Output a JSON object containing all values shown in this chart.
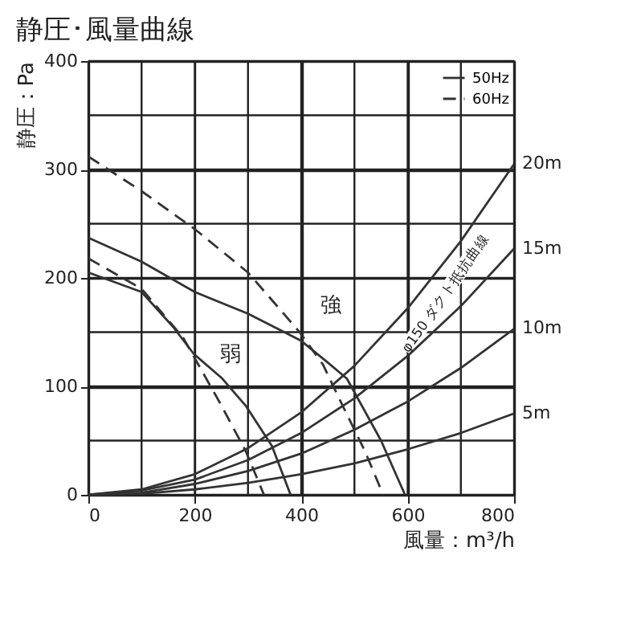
{
  "chart_data": {
    "type": "line",
    "title": "静圧･風量曲線",
    "xlabel": "風量：m³/h",
    "ylabel": "静圧：Pa",
    "xlim": [
      0,
      800
    ],
    "ylim": [
      0,
      400
    ],
    "xticks": [
      0,
      {
        "value": 100,
        "label": null
      },
      200,
      {
        "value": 300,
        "label": null
      },
      400,
      {
        "value": 500,
        "label": null
      },
      600,
      {
        "value": 700,
        "label": null
      },
      800
    ],
    "yticks": [
      0,
      {
        "value": 50,
        "label": null
      },
      100,
      {
        "value": 150,
        "label": null
      },
      200,
      {
        "value": 250,
        "label": null
      },
      300,
      {
        "value": 350,
        "label": null
      },
      400
    ],
    "grid": true,
    "legend": "top right",
    "marker": "none",
    "series": [
      {
        "name": "50Hz",
        "color": "#333333",
        "line_style": "solid",
        "x": [
          0,
          100,
          200,
          300,
          400,
          450,
          486,
          550,
          595
        ],
        "values": [
          237,
          215,
          187,
          167,
          142,
          122,
          107,
          50,
          0
        ]
      },
      {
        "color": "#333333",
        "line_style": "solid",
        "x": [
          0,
          100,
          159,
          198,
          250,
          296,
          345,
          380
        ],
        "values": [
          205,
          187,
          155,
          130,
          108,
          82,
          45,
          0
        ]
      },
      {
        "name": "60Hz",
        "color": "#333333",
        "line_style": "dashed",
        "x": [
          0,
          100,
          200,
          300,
          353,
          397,
          441,
          480,
          520,
          554
        ],
        "values": [
          312,
          280,
          245,
          205,
          175,
          150,
          120,
          80,
          40,
          0
        ]
      },
      {
        "color": "#333333",
        "line_style": "dashed",
        "x": [
          0,
          100,
          178,
          247,
          296,
          330
        ],
        "values": [
          218,
          190,
          145,
          85,
          40,
          0
        ]
      },
      {
        "name": "5m",
        "color": "#333333",
        "line_style": "solid",
        "x": [
          0,
          100,
          200,
          300,
          400,
          500,
          600,
          700,
          800
        ],
        "values": [
          0,
          1,
          5,
          11,
          19,
          29,
          42,
          57,
          75
        ]
      },
      {
        "name": "10m",
        "color": "#333333",
        "line_style": "solid",
        "x": [
          0,
          100,
          200,
          300,
          400,
          500,
          600,
          700,
          800
        ],
        "values": [
          0,
          2,
          10,
          22,
          38,
          60,
          86,
          117,
          153
        ]
      },
      {
        "name": "15m",
        "color": "#333333",
        "line_style": "solid",
        "x": [
          0,
          100,
          200,
          300,
          400,
          500,
          600,
          700,
          800
        ],
        "values": [
          0,
          4,
          14,
          32,
          57,
          89,
          128,
          174,
          227
        ]
      },
      {
        "name": "20m",
        "color": "#333333",
        "line_style": "solid",
        "x": [
          0,
          100,
          200,
          300,
          400,
          500,
          600,
          700,
          800
        ],
        "values": [
          0,
          5,
          19,
          43,
          76,
          119,
          172,
          234,
          305
        ]
      }
    ],
    "annotations": [
      "強",
      "弱",
      "φ150 ダクト抵抗曲線"
    ]
  }
}
